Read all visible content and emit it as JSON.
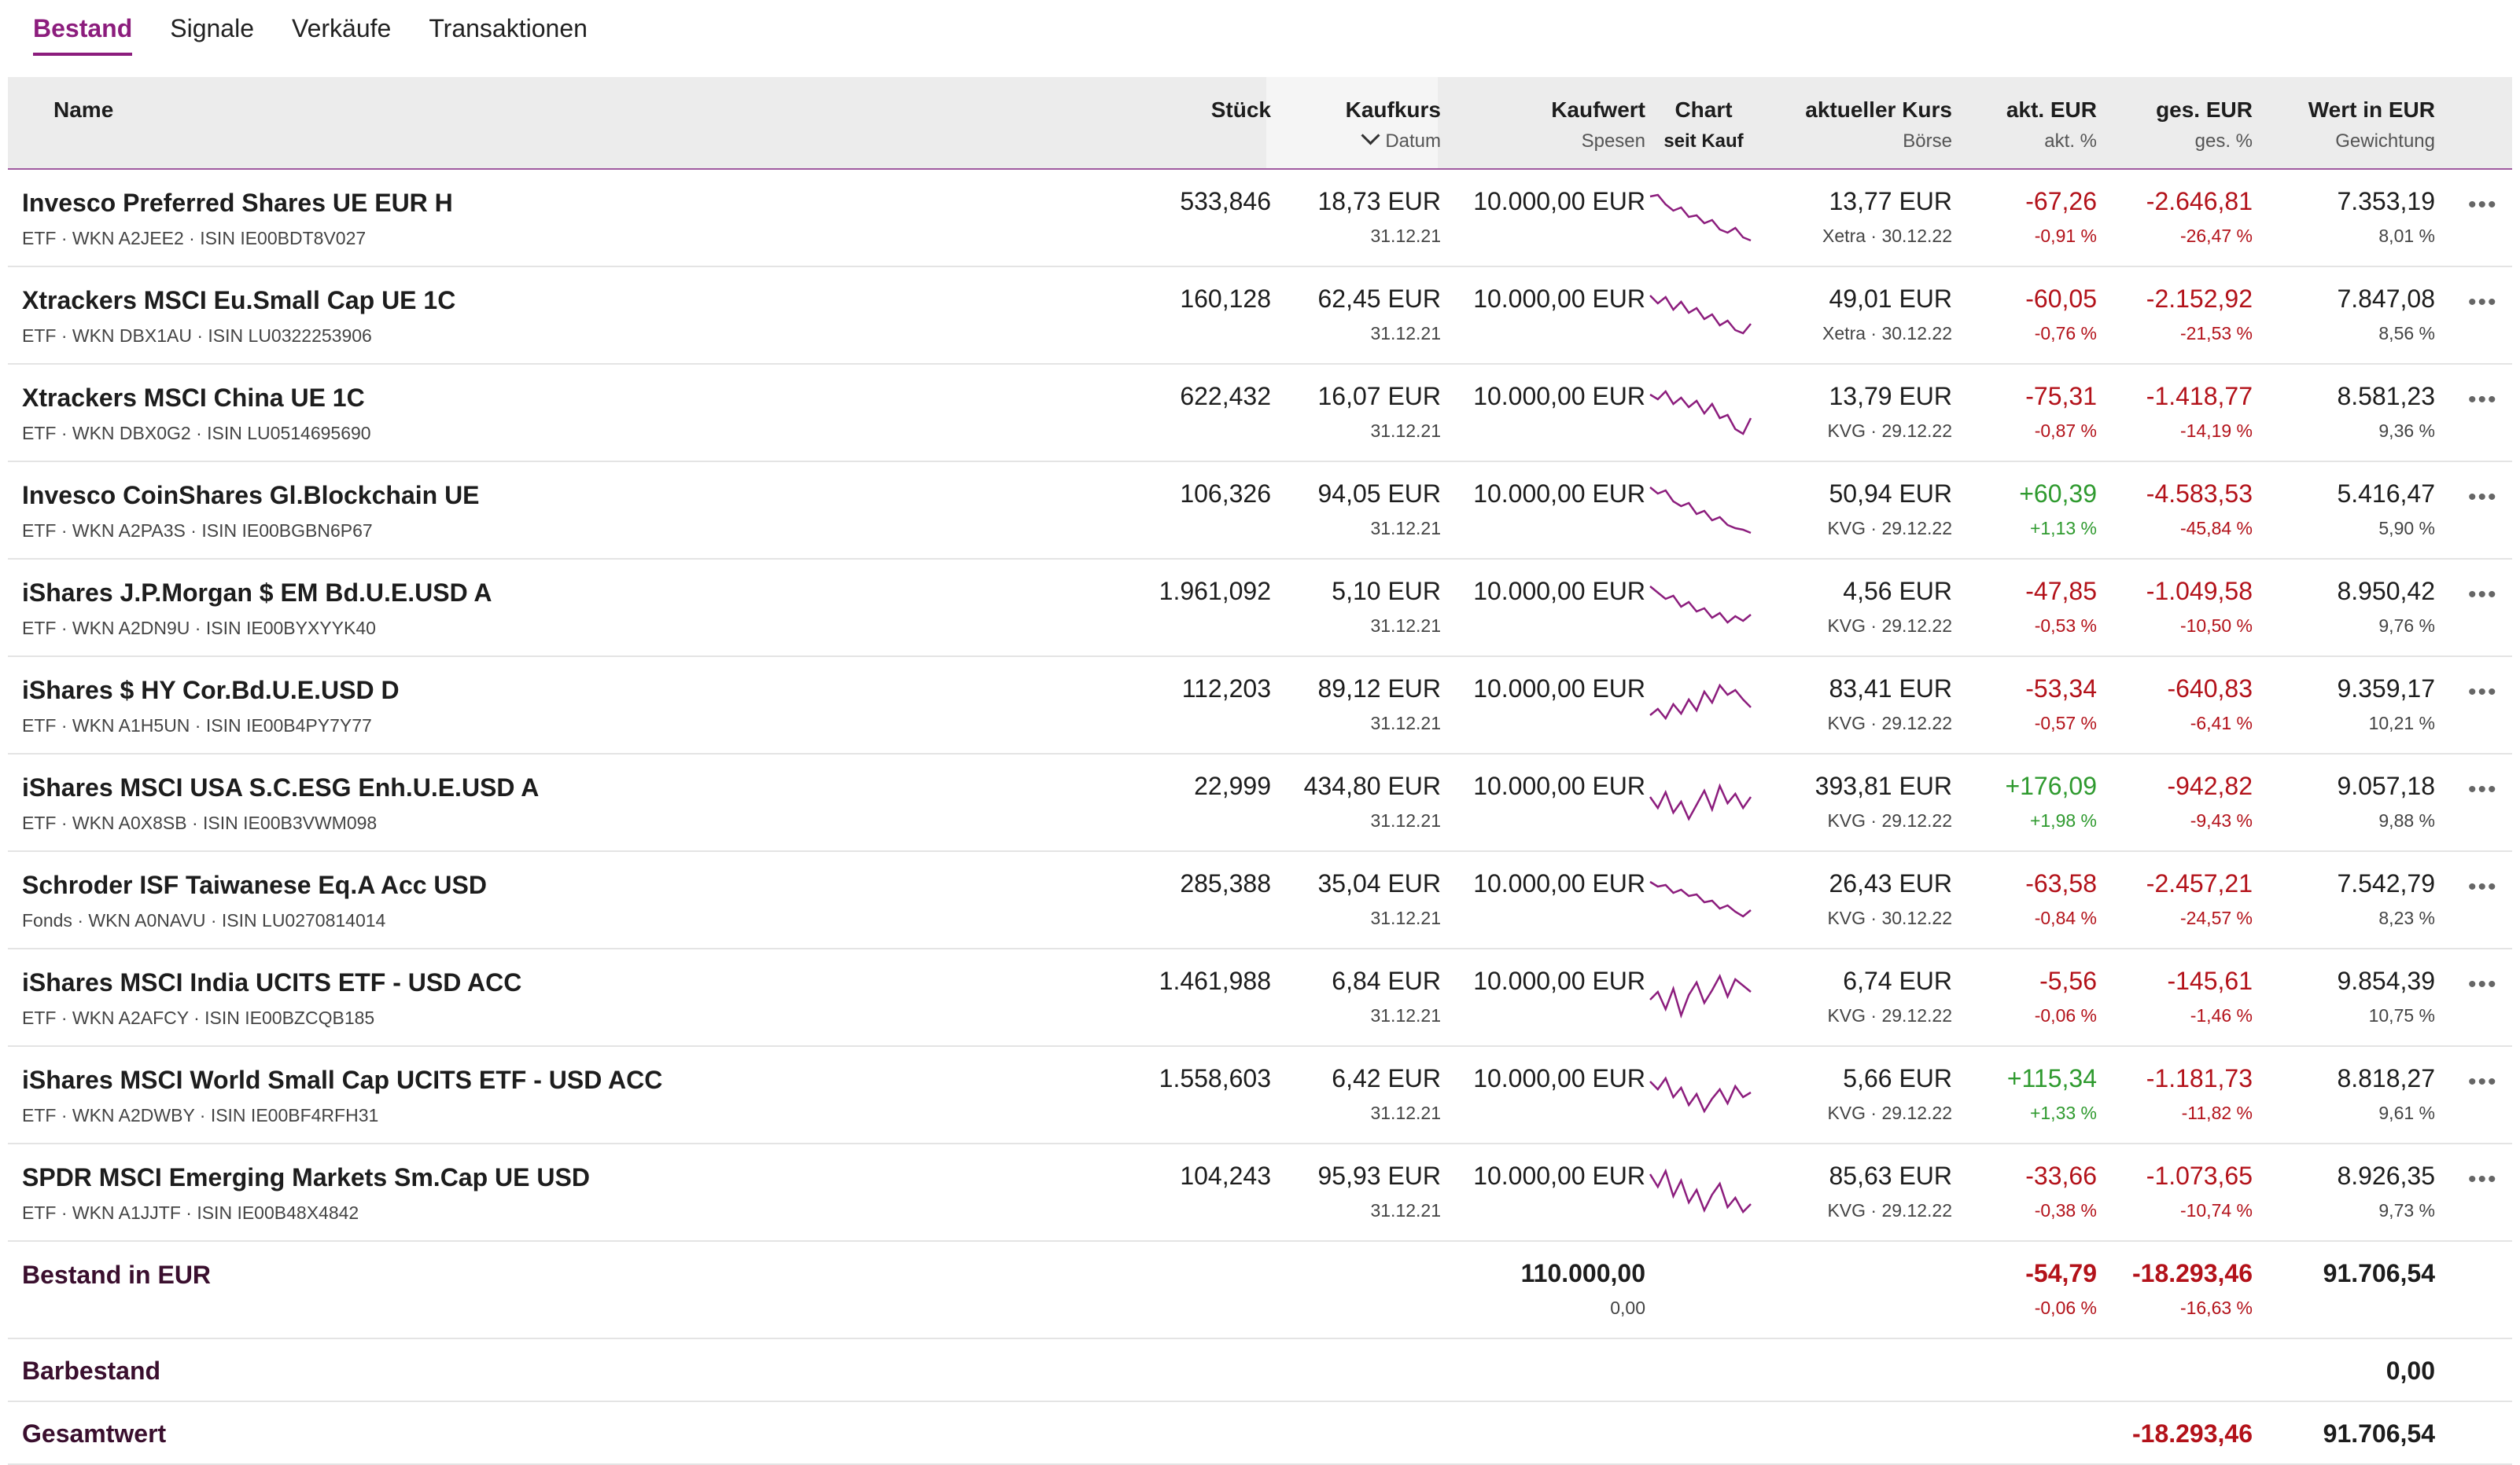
{
  "tabs": [
    {
      "label": "Bestand",
      "active": true
    },
    {
      "label": "Signale",
      "active": false
    },
    {
      "label": "Verkäufe",
      "active": false
    },
    {
      "label": "Transaktionen",
      "active": false
    }
  ],
  "header": {
    "name": "Name",
    "stueck": "Stück",
    "kaufkurs": "Kaufkurs",
    "kaufkurs_sub": "Datum",
    "kaufwert": "Kaufwert",
    "kaufwert_sub": "Spesen",
    "chart": "Chart",
    "chart_sub": "seit Kauf",
    "kurs": "aktueller Kurs",
    "kurs_sub": "Börse",
    "akt": "akt. EUR",
    "akt_sub": "akt. %",
    "ges": "ges. EUR",
    "ges_sub": "ges. %",
    "wert": "Wert in EUR",
    "wert_sub": "Gewichtung"
  },
  "colors": {
    "accent": "#8c1d7d",
    "negative": "#b3121a",
    "positive": "#2f9a2f",
    "chart_line": "#8c1d7d"
  },
  "rows": [
    {
      "name": "Invesco Preferred Shares UE EUR H",
      "meta": "ETF · WKN A2JEE2 · ISIN IE00BDT8V027",
      "stueck": "533,846",
      "kaufkurs": "18,73 EUR",
      "datum": "31.12.21",
      "kaufwert": "10.000,00 EUR",
      "kurs": "13,77 EUR",
      "boerse": "Xetra · 30.12.22",
      "akt": "-67,26",
      "akt_pct": "-0,91 %",
      "akt_pos": false,
      "ges": "-2.646,81",
      "ges_pct": "-26,47 %",
      "wert": "7.353,19",
      "gew": "8,01 %",
      "spark": [
        10,
        8,
        20,
        28,
        24,
        36,
        34,
        44,
        40,
        52,
        56,
        50,
        62,
        66
      ]
    },
    {
      "name": "Xtrackers MSCI Eu.Small Cap UE 1C",
      "meta": "ETF · WKN DBX1AU · ISIN LU0322253906",
      "stueck": "160,128",
      "kaufkurs": "62,45 EUR",
      "datum": "31.12.21",
      "kaufwert": "10.000,00 EUR",
      "kurs": "49,01 EUR",
      "boerse": "Xetra · 30.12.22",
      "akt": "-60,05",
      "akt_pct": "-0,76 %",
      "akt_pos": false,
      "ges": "-2.152,92",
      "ges_pct": "-21,53 %",
      "wert": "7.847,08",
      "gew": "8,56 %",
      "spark": [
        12,
        22,
        14,
        30,
        20,
        34,
        28,
        42,
        36,
        50,
        44,
        56,
        60,
        48
      ]
    },
    {
      "name": "Xtrackers MSCI China UE 1C",
      "meta": "ETF · WKN DBX0G2 · ISIN LU0514695690",
      "stueck": "622,432",
      "kaufkurs": "16,07 EUR",
      "datum": "31.12.21",
      "kaufwert": "10.000,00 EUR",
      "kurs": "13,79 EUR",
      "boerse": "KVG · 29.12.22",
      "akt": "-75,31",
      "akt_pct": "-0,87 %",
      "akt_pos": false,
      "ges": "-1.418,77",
      "ges_pct": "-14,19 %",
      "wert": "8.581,23",
      "gew": "9,36 %",
      "spark": [
        14,
        20,
        10,
        26,
        18,
        30,
        22,
        38,
        26,
        44,
        40,
        58,
        64,
        44
      ]
    },
    {
      "name": "Invesco CoinShares Gl.Blockchain UE",
      "meta": "ETF · WKN A2PA3S · ISIN IE00BGBN6P67",
      "stueck": "106,326",
      "kaufkurs": "94,05 EUR",
      "datum": "31.12.21",
      "kaufwert": "10.000,00 EUR",
      "kurs": "50,94 EUR",
      "boerse": "KVG · 29.12.22",
      "akt": "+60,39",
      "akt_pct": "+1,13 %",
      "akt_pos": true,
      "ges": "-4.583,53",
      "ges_pct": "-45,84 %",
      "wert": "5.416,47",
      "gew": "5,90 %",
      "spark": [
        8,
        16,
        12,
        26,
        32,
        28,
        42,
        38,
        50,
        46,
        56,
        60,
        62,
        66
      ]
    },
    {
      "name": "iShares J.P.Morgan $ EM Bd.U.E.USD A",
      "meta": "ETF · WKN A2DN9U · ISIN IE00BYXYYK40",
      "stueck": "1.961,092",
      "kaufkurs": "5,10 EUR",
      "datum": "31.12.21",
      "kaufwert": "10.000,00 EUR",
      "kurs": "4,56 EUR",
      "boerse": "KVG · 29.12.22",
      "akt": "-47,85",
      "akt_pct": "-0,53 %",
      "akt_pos": false,
      "ges": "-1.049,58",
      "ges_pct": "-10,50 %",
      "wert": "8.950,42",
      "gew": "9,76 %",
      "spark": [
        10,
        18,
        26,
        22,
        36,
        30,
        42,
        38,
        50,
        44,
        56,
        48,
        54,
        46
      ]
    },
    {
      "name": "iShares $ HY Cor.Bd.U.E.USD D",
      "meta": "ETF · WKN A1H5UN · ISIN IE00B4PY7Y77",
      "stueck": "112,203",
      "kaufkurs": "89,12 EUR",
      "datum": "31.12.21",
      "kaufwert": "10.000,00 EUR",
      "kurs": "83,41 EUR",
      "boerse": "KVG · 29.12.22",
      "akt": "-53,34",
      "akt_pct": "-0,57 %",
      "akt_pos": false,
      "ges": "-640,83",
      "ges_pct": "-6,41 %",
      "wert": "9.359,17",
      "gew": "10,21 %",
      "spark": [
        50,
        42,
        54,
        36,
        48,
        30,
        44,
        20,
        34,
        12,
        24,
        18,
        30,
        40
      ]
    },
    {
      "name": "iShares MSCI USA S.C.ESG Enh.U.E.USD A",
      "meta": "ETF · WKN A0X8SB · ISIN IE00B3VWM098",
      "stueck": "22,999",
      "kaufkurs": "434,80 EUR",
      "datum": "31.12.21",
      "kaufwert": "10.000,00 EUR",
      "kurs": "393,81 EUR",
      "boerse": "KVG · 29.12.22",
      "akt": "+176,09",
      "akt_pct": "+1,98 %",
      "akt_pos": true,
      "ges": "-942,82",
      "ges_pct": "-9,43 %",
      "wert": "9.057,18",
      "gew": "9,88 %",
      "spark": [
        30,
        44,
        24,
        50,
        36,
        58,
        40,
        22,
        46,
        16,
        38,
        26,
        44,
        30
      ]
    },
    {
      "name": "Schroder ISF Taiwanese Eq.A Acc USD",
      "meta": "Fonds · WKN A0NAVU · ISIN LU0270814014",
      "stueck": "285,388",
      "kaufkurs": "35,04 EUR",
      "datum": "31.12.21",
      "kaufwert": "10.000,00 EUR",
      "kurs": "26,43 EUR",
      "boerse": "KVG · 30.12.22",
      "akt": "-63,58",
      "akt_pct": "-0,84 %",
      "akt_pos": false,
      "ges": "-2.457,21",
      "ges_pct": "-24,57 %",
      "wert": "7.542,79",
      "gew": "8,23 %",
      "spark": [
        14,
        20,
        18,
        28,
        24,
        32,
        30,
        40,
        38,
        48,
        44,
        52,
        58,
        50
      ]
    },
    {
      "name": "iShares MSCI India UCITS ETF - USD ACC",
      "meta": "ETF · WKN A2AFCY · ISIN IE00BZCQB185",
      "stueck": "1.461,988",
      "kaufkurs": "6,84 EUR",
      "datum": "31.12.21",
      "kaufwert": "10.000,00 EUR",
      "kurs": "6,74 EUR",
      "boerse": "KVG · 29.12.22",
      "akt": "-5,56",
      "akt_pct": "-0,06 %",
      "akt_pos": false,
      "ges": "-145,61",
      "ges_pct": "-1,46 %",
      "wert": "9.854,39",
      "gew": "10,75 %",
      "spark": [
        40,
        30,
        52,
        26,
        60,
        34,
        18,
        44,
        28,
        10,
        36,
        14,
        22,
        30
      ]
    },
    {
      "name": "iShares MSCI World Small Cap UCITS ETF - USD ACC",
      "meta": "ETF · WKN A2DWBY · ISIN IE00BF4RFH31",
      "stueck": "1.558,603",
      "kaufkurs": "6,42 EUR",
      "datum": "31.12.21",
      "kaufwert": "10.000,00 EUR",
      "kurs": "5,66 EUR",
      "boerse": "KVG · 29.12.22",
      "akt": "+115,34",
      "akt_pct": "+1,33 %",
      "akt_pos": true,
      "ges": "-1.181,73",
      "ges_pct": "-11,82 %",
      "wert": "8.818,27",
      "gew": "9,61 %",
      "spark": [
        20,
        30,
        16,
        40,
        28,
        50,
        36,
        58,
        42,
        30,
        48,
        26,
        40,
        34
      ]
    },
    {
      "name": "SPDR MSCI Emerging Markets Sm.Cap UE USD",
      "meta": "ETF · WKN A1JJTF · ISIN IE00B48X4842",
      "stueck": "104,243",
      "kaufkurs": "95,93 EUR",
      "datum": "31.12.21",
      "kaufwert": "10.000,00 EUR",
      "kurs": "85,63 EUR",
      "boerse": "KVG · 29.12.22",
      "akt": "-33,66",
      "akt_pct": "-0,38 %",
      "akt_pos": false,
      "ges": "-1.073,65",
      "ges_pct": "-10,74 %",
      "wert": "8.926,35",
      "gew": "9,73 %",
      "spark": [
        14,
        30,
        10,
        42,
        22,
        50,
        34,
        60,
        40,
        26,
        56,
        44,
        62,
        52
      ]
    }
  ],
  "summary": {
    "label": "Bestand in EUR",
    "kaufwert": "110.000,00",
    "spesen": "0,00",
    "akt": "-54,79",
    "akt_pct": "-0,06 %",
    "ges": "-18.293,46",
    "ges_pct": "-16,63 %",
    "wert": "91.706,54"
  },
  "bar": {
    "label": "Barbestand",
    "wert": "0,00"
  },
  "total": {
    "label": "Gesamtwert",
    "ges": "-18.293,46",
    "wert": "91.706,54"
  }
}
